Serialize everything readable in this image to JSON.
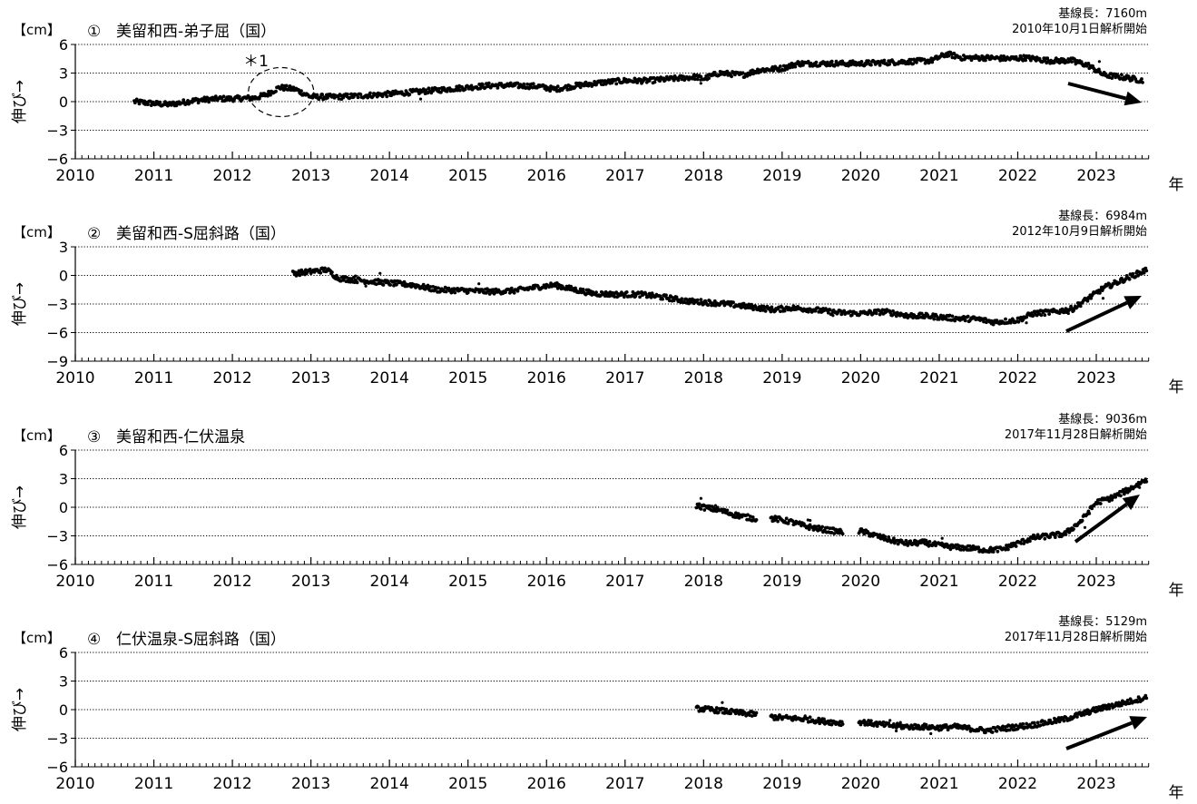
{
  "chart_data": [
    {
      "type": "scatter",
      "number_label": "①",
      "title": "美留和西-弟子屈（国）",
      "unit_label": "【cm】",
      "ylabel": "伸び→",
      "xlabel": "年",
      "baseline_text": "基線長：7160m",
      "start_text": "2010年10月1日解析開始",
      "annotation": "＊1",
      "ylim": [
        -6,
        6
      ],
      "yticks": [
        6,
        3,
        0,
        -3,
        -6
      ],
      "xlim": [
        2010,
        2023.67
      ],
      "xticks": [
        "2010",
        "2011",
        "2012",
        "2013",
        "2014",
        "2015",
        "2016",
        "2017",
        "2018",
        "2019",
        "2020",
        "2021",
        "2022",
        "2023"
      ],
      "arrow": "downward trend since 2022.7",
      "gaps": [],
      "series": [
        {
          "x": [
            2010.75,
            2011.0,
            2011.2,
            2011.5,
            2011.8,
            2012.0,
            2012.3,
            2012.45,
            2012.6,
            2012.8,
            2013.0,
            2013.3,
            2013.6,
            2014.0,
            2014.3,
            2014.6,
            2015.0,
            2015.3,
            2015.6,
            2015.9,
            2016.1,
            2016.4,
            2016.7,
            2017.0,
            2017.3,
            2017.6,
            2017.9,
            2018.0,
            2018.2,
            2018.5,
            2018.7,
            2019.0,
            2019.2,
            2019.5,
            2019.8,
            2020.0,
            2020.3,
            2020.6,
            2020.9,
            2021.1,
            2021.3,
            2021.6,
            2021.9,
            2022.1,
            2022.4,
            2022.7,
            2022.9,
            2023.1,
            2023.4,
            2023.6
          ],
          "y": [
            0.0,
            -0.2,
            -0.3,
            0.1,
            0.3,
            0.3,
            0.4,
            0.8,
            1.5,
            1.3,
            0.5,
            0.5,
            0.6,
            0.8,
            1.0,
            1.2,
            1.5,
            1.7,
            1.7,
            1.6,
            1.3,
            1.7,
            2.0,
            2.2,
            2.2,
            2.4,
            2.6,
            2.4,
            3.0,
            2.8,
            3.3,
            3.5,
            4.0,
            4.0,
            4.0,
            4.0,
            4.1,
            4.2,
            4.3,
            5.0,
            4.6,
            4.6,
            4.5,
            4.6,
            4.3,
            4.3,
            3.8,
            2.8,
            2.5,
            2.2
          ]
        }
      ]
    },
    {
      "type": "scatter",
      "number_label": "②",
      "title": "美留和西-S屈斜路（国）",
      "unit_label": "【cm】",
      "ylabel": "伸び→",
      "xlabel": "年",
      "baseline_text": "基線長：6984m",
      "start_text": "2012年10月9日解析開始",
      "annotation": "",
      "ylim": [
        -9,
        3
      ],
      "yticks": [
        3,
        0,
        -3,
        -6,
        -9
      ],
      "xlim": [
        2010,
        2023.67
      ],
      "xticks": [
        "2010",
        "2011",
        "2012",
        "2013",
        "2014",
        "2015",
        "2016",
        "2017",
        "2018",
        "2019",
        "2020",
        "2021",
        "2022",
        "2023"
      ],
      "arrow": "upward trend since 2022.7",
      "gaps": [],
      "series": [
        {
          "x": [
            2012.77,
            2013.0,
            2013.2,
            2013.35,
            2013.6,
            2014.0,
            2014.3,
            2014.6,
            2015.0,
            2015.3,
            2015.6,
            2015.9,
            2016.1,
            2016.3,
            2016.6,
            2016.9,
            2017.2,
            2017.5,
            2017.8,
            2018.0,
            2018.3,
            2018.6,
            2018.9,
            2019.1,
            2019.4,
            2019.7,
            2020.0,
            2020.3,
            2020.6,
            2020.9,
            2021.2,
            2021.5,
            2021.7,
            2022.0,
            2022.2,
            2022.5,
            2022.7,
            2022.9,
            2023.1,
            2023.3,
            2023.5,
            2023.65
          ],
          "y": [
            0.2,
            0.4,
            0.6,
            -0.3,
            -0.5,
            -0.8,
            -1.0,
            -1.5,
            -1.6,
            -1.7,
            -1.6,
            -1.2,
            -1.0,
            -1.4,
            -1.9,
            -2.0,
            -2.0,
            -2.3,
            -2.7,
            -2.8,
            -3.0,
            -3.3,
            -3.6,
            -3.4,
            -3.6,
            -3.9,
            -4.0,
            -3.8,
            -4.2,
            -4.3,
            -4.5,
            -4.6,
            -4.9,
            -4.7,
            -4.0,
            -3.8,
            -3.5,
            -2.4,
            -1.3,
            -0.6,
            0.1,
            0.6
          ]
        }
      ]
    },
    {
      "type": "scatter",
      "number_label": "③",
      "title": "美留和西-仁伏温泉",
      "unit_label": "【cm】",
      "ylabel": "伸び→",
      "xlabel": "年",
      "baseline_text": "基線長：9036m",
      "start_text": "2017年11月28日解析開始",
      "annotation": "",
      "ylim": [
        -6,
        6
      ],
      "yticks": [
        6,
        3,
        0,
        -3,
        -6
      ],
      "xlim": [
        2010,
        2023.67
      ],
      "xticks": [
        "2010",
        "2011",
        "2012",
        "2013",
        "2014",
        "2015",
        "2016",
        "2017",
        "2018",
        "2019",
        "2020",
        "2021",
        "2022",
        "2023"
      ],
      "arrow": "upward trend since 2022.7",
      "gaps": [
        [
          2018.68,
          2018.85
        ],
        [
          2019.78,
          2019.97
        ]
      ],
      "series": [
        {
          "x": [
            2017.91,
            2018.0,
            2018.2,
            2018.4,
            2018.65,
            2018.9,
            2019.1,
            2019.3,
            2019.5,
            2019.75,
            2020.0,
            2020.2,
            2020.4,
            2020.6,
            2020.8,
            2021.0,
            2021.2,
            2021.4,
            2021.6,
            2021.8,
            2022.0,
            2022.2,
            2022.4,
            2022.6,
            2022.8,
            2023.0,
            2023.2,
            2023.4,
            2023.55,
            2023.65
          ],
          "y": [
            0.2,
            0.0,
            -0.3,
            -0.8,
            -1.2,
            -1.2,
            -1.5,
            -2.0,
            -2.3,
            -2.6,
            -2.5,
            -3.0,
            -3.5,
            -3.8,
            -3.7,
            -4.0,
            -4.2,
            -4.3,
            -4.5,
            -4.4,
            -3.8,
            -3.2,
            -3.0,
            -2.8,
            -1.5,
            0.5,
            1.0,
            1.8,
            2.5,
            3.0
          ]
        }
      ]
    },
    {
      "type": "scatter",
      "number_label": "④",
      "title": "仁伏温泉-S屈斜路（国）",
      "unit_label": "【cm】",
      "ylabel": "伸び→",
      "xlabel": "年",
      "baseline_text": "基線長：5129m",
      "start_text": "2017年11月28日解析開始",
      "annotation": "",
      "ylim": [
        -6,
        6
      ],
      "yticks": [
        6,
        3,
        0,
        -3,
        -6
      ],
      "xlim": [
        2010,
        2023.67
      ],
      "xticks": [
        "2010",
        "2011",
        "2012",
        "2013",
        "2014",
        "2015",
        "2016",
        "2017",
        "2018",
        "2019",
        "2020",
        "2021",
        "2022",
        "2023"
      ],
      "arrow": "upward trend since 2022.7",
      "gaps": [
        [
          2018.68,
          2018.85
        ],
        [
          2019.78,
          2019.97
        ]
      ],
      "series": [
        {
          "x": [
            2017.91,
            2018.1,
            2018.3,
            2018.65,
            2018.9,
            2019.1,
            2019.3,
            2019.5,
            2019.75,
            2020.0,
            2020.2,
            2020.4,
            2020.6,
            2020.8,
            2021.0,
            2021.2,
            2021.4,
            2021.6,
            2021.8,
            2022.0,
            2022.2,
            2022.4,
            2022.6,
            2022.8,
            2023.0,
            2023.2,
            2023.4,
            2023.55,
            2023.65
          ],
          "y": [
            0.1,
            0.0,
            -0.2,
            -0.5,
            -0.8,
            -0.9,
            -1.0,
            -1.2,
            -1.4,
            -1.3,
            -1.5,
            -1.7,
            -1.8,
            -1.8,
            -1.9,
            -1.8,
            -2.0,
            -2.2,
            -2.0,
            -1.8,
            -1.6,
            -1.3,
            -1.0,
            -0.5,
            0.0,
            0.4,
            0.8,
            1.1,
            1.3
          ]
        }
      ]
    }
  ]
}
